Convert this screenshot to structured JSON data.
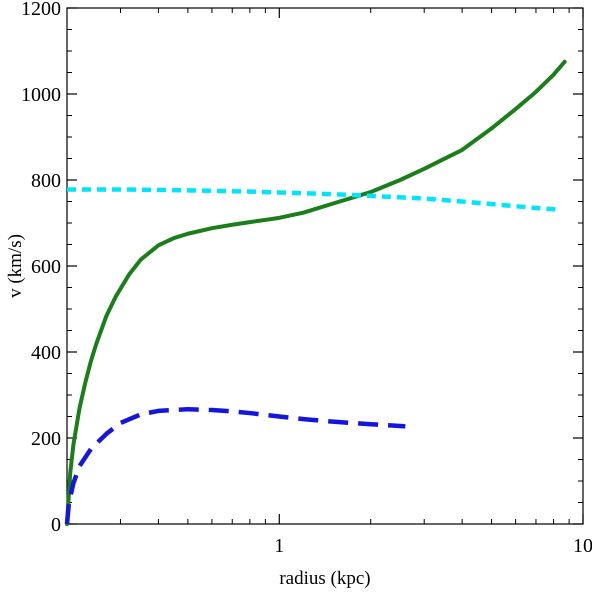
{
  "chart_data": {
    "type": "line",
    "title": "",
    "xlabel": "radius (kpc)",
    "ylabel": "v (km/s)",
    "x_scale": "log",
    "xlim": [
      0.2,
      10
    ],
    "ylim": [
      0,
      1200
    ],
    "x_ticks": [
      {
        "value": 1,
        "label": "1"
      },
      {
        "value": 10,
        "label": "10"
      }
    ],
    "y_ticks": [
      {
        "value": 0,
        "label": "0"
      },
      {
        "value": 200,
        "label": "200"
      },
      {
        "value": 400,
        "label": "400"
      },
      {
        "value": 600,
        "label": "600"
      },
      {
        "value": 800,
        "label": "800"
      },
      {
        "value": 1000,
        "label": "1000"
      },
      {
        "value": 1200,
        "label": "1200"
      }
    ],
    "grid": false,
    "series": [
      {
        "style": "solid",
        "color": "#1a7f1a",
        "points": [
          [
            0.2,
            0
          ],
          [
            0.205,
            120
          ],
          [
            0.21,
            185
          ],
          [
            0.22,
            270
          ],
          [
            0.23,
            330
          ],
          [
            0.24,
            380
          ],
          [
            0.25,
            420
          ],
          [
            0.27,
            485
          ],
          [
            0.29,
            530
          ],
          [
            0.32,
            580
          ],
          [
            0.35,
            615
          ],
          [
            0.4,
            648
          ],
          [
            0.45,
            665
          ],
          [
            0.5,
            675
          ],
          [
            0.6,
            688
          ],
          [
            0.7,
            696
          ],
          [
            0.8,
            702
          ],
          [
            1.0,
            712
          ],
          [
            1.2,
            724
          ],
          [
            1.5,
            745
          ],
          [
            2.0,
            772
          ],
          [
            2.5,
            800
          ],
          [
            3.0,
            826
          ],
          [
            4.0,
            870
          ],
          [
            5.0,
            920
          ],
          [
            6.0,
            965
          ],
          [
            7.0,
            1005
          ],
          [
            8.0,
            1045
          ],
          [
            8.7,
            1075
          ]
        ]
      },
      {
        "style": "dashed",
        "color": "#00e5ff",
        "points": [
          [
            0.2,
            778
          ],
          [
            0.3,
            778
          ],
          [
            0.5,
            776
          ],
          [
            0.8,
            773
          ],
          [
            1.0,
            771
          ],
          [
            1.5,
            767
          ],
          [
            2.0,
            763
          ],
          [
            3.0,
            757
          ],
          [
            4.0,
            750
          ],
          [
            5.0,
            744
          ],
          [
            6.0,
            739
          ],
          [
            7.0,
            735
          ],
          [
            8.0,
            732
          ],
          [
            8.3,
            730
          ]
        ]
      },
      {
        "style": "dashed",
        "color": "#1515e0",
        "points": [
          [
            0.2,
            0
          ],
          [
            0.203,
            50
          ],
          [
            0.21,
            95
          ],
          [
            0.22,
            135
          ],
          [
            0.24,
            175
          ],
          [
            0.27,
            210
          ],
          [
            0.3,
            235
          ],
          [
            0.35,
            255
          ],
          [
            0.4,
            263
          ],
          [
            0.5,
            267
          ],
          [
            0.6,
            265
          ],
          [
            0.7,
            262
          ],
          [
            0.8,
            258
          ],
          [
            1.0,
            250
          ],
          [
            1.2,
            244
          ],
          [
            1.5,
            238
          ],
          [
            2.0,
            232
          ],
          [
            2.5,
            228
          ],
          [
            2.6,
            227
          ]
        ]
      }
    ]
  }
}
